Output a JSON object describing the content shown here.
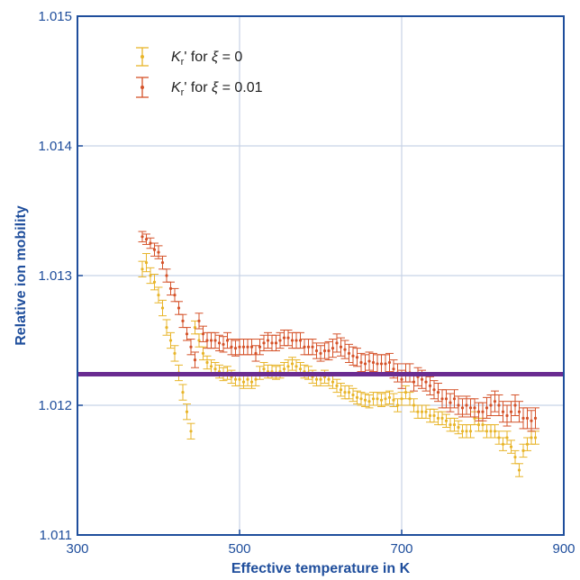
{
  "chart_data": {
    "type": "scatter",
    "title": "",
    "xlabel": "Effective temperature in K",
    "ylabel": "Relative ion mobility",
    "xlim": [
      300,
      900
    ],
    "ylim": [
      1.011,
      1.015
    ],
    "xticks": [
      300,
      500,
      700,
      900
    ],
    "yticks": [
      1.011,
      1.012,
      1.013,
      1.014,
      1.015
    ],
    "xtick_labels": [
      "300",
      "500",
      "700",
      "900"
    ],
    "ytick_labels": [
      "1.011",
      "1.012",
      "1.013",
      "1.014",
      "1.015"
    ],
    "grid": true,
    "legend_position": "top-left",
    "reference_line": {
      "y": 1.01224,
      "color": "#6a2c91"
    },
    "series": [
      {
        "legend_prefix": "K",
        "legend_subscript": "r",
        "legend_suffix": "' for ",
        "legend_symbol": "ξ",
        "legend_value": " = 0",
        "color": "#e8b52a",
        "points": [
          [
            380,
            1.01305,
            6e-05
          ],
          [
            385,
            1.0131,
            7e-05
          ],
          [
            390,
            1.013,
            6e-05
          ],
          [
            395,
            1.01295,
            6e-05
          ],
          [
            400,
            1.01285,
            6e-05
          ],
          [
            405,
            1.01275,
            6e-05
          ],
          [
            410,
            1.0126,
            6e-05
          ],
          [
            415,
            1.0125,
            6e-05
          ],
          [
            420,
            1.0124,
            6e-05
          ],
          [
            425,
            1.01225,
            6e-05
          ],
          [
            430,
            1.0121,
            6e-05
          ],
          [
            435,
            1.01195,
            6e-05
          ],
          [
            440,
            1.0118,
            6e-05
          ],
          [
            445,
            1.0126,
            5e-05
          ],
          [
            450,
            1.0125,
            5e-05
          ],
          [
            455,
            1.0124,
            5e-05
          ],
          [
            460,
            1.01233,
            5e-05
          ],
          [
            465,
            1.0123,
            5e-05
          ],
          [
            470,
            1.01228,
            5e-05
          ],
          [
            475,
            1.01226,
            5e-05
          ],
          [
            480,
            1.01224,
            5e-05
          ],
          [
            485,
            1.01225,
            5e-05
          ],
          [
            490,
            1.01222,
            5e-05
          ],
          [
            495,
            1.0122,
            5e-05
          ],
          [
            500,
            1.0122,
            5e-05
          ],
          [
            505,
            1.01218,
            5e-05
          ],
          [
            510,
            1.0122,
            5e-05
          ],
          [
            515,
            1.01218,
            5e-05
          ],
          [
            520,
            1.0122,
            5e-05
          ],
          [
            525,
            1.01225,
            5e-05
          ],
          [
            530,
            1.01228,
            5e-05
          ],
          [
            535,
            1.01226,
            5e-05
          ],
          [
            540,
            1.01226,
            5e-05
          ],
          [
            545,
            1.01225,
            5e-05
          ],
          [
            550,
            1.01226,
            5e-05
          ],
          [
            555,
            1.01228,
            5e-05
          ],
          [
            560,
            1.0123,
            5e-05
          ],
          [
            565,
            1.01232,
            5e-05
          ],
          [
            570,
            1.0123,
            5e-05
          ],
          [
            575,
            1.01228,
            5e-05
          ],
          [
            580,
            1.01226,
            5e-05
          ],
          [
            585,
            1.01225,
            5e-05
          ],
          [
            590,
            1.01222,
            5e-05
          ],
          [
            595,
            1.0122,
            5e-05
          ],
          [
            600,
            1.0122,
            5e-05
          ],
          [
            605,
            1.01222,
            5e-05
          ],
          [
            610,
            1.0122,
            5e-05
          ],
          [
            615,
            1.01218,
            5e-05
          ],
          [
            620,
            1.01215,
            5e-05
          ],
          [
            625,
            1.01212,
            5e-05
          ],
          [
            630,
            1.0121,
            5e-05
          ],
          [
            635,
            1.0121,
            5e-05
          ],
          [
            640,
            1.01208,
            5e-05
          ],
          [
            645,
            1.01206,
            5e-05
          ],
          [
            650,
            1.01205,
            5e-05
          ],
          [
            655,
            1.01204,
            5e-05
          ],
          [
            660,
            1.01203,
            5e-05
          ],
          [
            665,
            1.01205,
            5e-05
          ],
          [
            670,
            1.01205,
            5e-05
          ],
          [
            675,
            1.01204,
            5e-05
          ],
          [
            680,
            1.01205,
            5e-05
          ],
          [
            685,
            1.01206,
            5e-05
          ],
          [
            690,
            1.01204,
            5e-05
          ],
          [
            695,
            1.012,
            5e-05
          ],
          [
            700,
            1.01205,
            5e-05
          ],
          [
            705,
            1.0121,
            5e-05
          ],
          [
            710,
            1.01205,
            5e-05
          ],
          [
            715,
            1.012,
            5e-05
          ],
          [
            720,
            1.01195,
            5e-05
          ],
          [
            725,
            1.01195,
            5e-05
          ],
          [
            730,
            1.01195,
            5e-05
          ],
          [
            735,
            1.01192,
            5e-05
          ],
          [
            740,
            1.01192,
            5e-05
          ],
          [
            745,
            1.0119,
            5e-05
          ],
          [
            750,
            1.0119,
            5e-05
          ],
          [
            755,
            1.01188,
            5e-05
          ],
          [
            760,
            1.01185,
            5e-05
          ],
          [
            765,
            1.01185,
            5e-05
          ],
          [
            770,
            1.01183,
            5e-05
          ],
          [
            775,
            1.0118,
            5e-05
          ],
          [
            780,
            1.0118,
            5e-05
          ],
          [
            785,
            1.0118,
            5e-05
          ],
          [
            790,
            1.0119,
            5e-05
          ],
          [
            795,
            1.01185,
            5e-05
          ],
          [
            800,
            1.01185,
            5e-05
          ],
          [
            805,
            1.0118,
            5e-05
          ],
          [
            810,
            1.0118,
            5e-05
          ],
          [
            815,
            1.0118,
            5e-05
          ],
          [
            820,
            1.01175,
            5e-05
          ],
          [
            825,
            1.0117,
            5e-05
          ],
          [
            830,
            1.01175,
            5e-05
          ],
          [
            835,
            1.01168,
            5e-05
          ],
          [
            840,
            1.0116,
            5e-05
          ],
          [
            845,
            1.0115,
            5e-05
          ],
          [
            850,
            1.01165,
            5e-05
          ],
          [
            855,
            1.0117,
            5e-05
          ],
          [
            860,
            1.01175,
            5e-05
          ],
          [
            865,
            1.01175,
            5e-05
          ]
        ]
      },
      {
        "legend_prefix": "K",
        "legend_subscript": "r",
        "legend_suffix": "' for ",
        "legend_symbol": "ξ",
        "legend_value": " = 0.01",
        "color": "#d5532a",
        "points": [
          [
            380,
            1.0133,
            4e-05
          ],
          [
            385,
            1.01328,
            4e-05
          ],
          [
            390,
            1.01325,
            4e-05
          ],
          [
            395,
            1.0132,
            5e-05
          ],
          [
            400,
            1.01318,
            5e-05
          ],
          [
            405,
            1.0131,
            5e-05
          ],
          [
            410,
            1.013,
            5e-05
          ],
          [
            415,
            1.0129,
            5e-05
          ],
          [
            420,
            1.01285,
            5e-05
          ],
          [
            425,
            1.01275,
            5e-05
          ],
          [
            430,
            1.01265,
            5e-05
          ],
          [
            435,
            1.01255,
            5e-05
          ],
          [
            440,
            1.01245,
            6e-05
          ],
          [
            445,
            1.01235,
            6e-05
          ],
          [
            450,
            1.01265,
            6e-05
          ],
          [
            455,
            1.01255,
            6e-05
          ],
          [
            460,
            1.0125,
            6e-05
          ],
          [
            465,
            1.0125,
            6e-05
          ],
          [
            470,
            1.0125,
            6e-05
          ],
          [
            475,
            1.01248,
            6e-05
          ],
          [
            480,
            1.01247,
            6e-05
          ],
          [
            485,
            1.0125,
            6e-05
          ],
          [
            490,
            1.01245,
            6e-05
          ],
          [
            495,
            1.01244,
            6e-05
          ],
          [
            500,
            1.01245,
            6e-05
          ],
          [
            505,
            1.01245,
            6e-05
          ],
          [
            510,
            1.01245,
            6e-05
          ],
          [
            515,
            1.01245,
            6e-05
          ],
          [
            520,
            1.0124,
            6e-05
          ],
          [
            525,
            1.01245,
            6e-05
          ],
          [
            530,
            1.01248,
            6e-05
          ],
          [
            535,
            1.0125,
            6e-05
          ],
          [
            540,
            1.01248,
            6e-05
          ],
          [
            545,
            1.01248,
            6e-05
          ],
          [
            550,
            1.0125,
            6e-05
          ],
          [
            555,
            1.01252,
            6e-05
          ],
          [
            560,
            1.01252,
            6e-05
          ],
          [
            565,
            1.0125,
            6e-05
          ],
          [
            570,
            1.0125,
            6e-05
          ],
          [
            575,
            1.0125,
            6e-05
          ],
          [
            580,
            1.01245,
            6e-05
          ],
          [
            585,
            1.01245,
            6e-05
          ],
          [
            590,
            1.01245,
            6e-05
          ],
          [
            595,
            1.01242,
            6e-05
          ],
          [
            600,
            1.0124,
            6e-05
          ],
          [
            605,
            1.01242,
            6e-05
          ],
          [
            610,
            1.01242,
            7e-05
          ],
          [
            615,
            1.01244,
            7e-05
          ],
          [
            620,
            1.01248,
            7e-05
          ],
          [
            625,
            1.01245,
            7e-05
          ],
          [
            630,
            1.01243,
            7e-05
          ],
          [
            635,
            1.0124,
            7e-05
          ],
          [
            640,
            1.01238,
            7e-05
          ],
          [
            645,
            1.01237,
            7e-05
          ],
          [
            650,
            1.01233,
            7e-05
          ],
          [
            655,
            1.01232,
            7e-05
          ],
          [
            660,
            1.01234,
            7e-05
          ],
          [
            665,
            1.01233,
            7e-05
          ],
          [
            670,
            1.01232,
            7e-05
          ],
          [
            675,
            1.01232,
            7e-05
          ],
          [
            680,
            1.01232,
            7e-05
          ],
          [
            685,
            1.01233,
            7e-05
          ],
          [
            690,
            1.01228,
            7e-05
          ],
          [
            695,
            1.01225,
            7e-05
          ],
          [
            700,
            1.0122,
            7e-05
          ],
          [
            705,
            1.01225,
            7e-05
          ],
          [
            710,
            1.01225,
            7e-05
          ],
          [
            715,
            1.01218,
            7e-05
          ],
          [
            720,
            1.01222,
            7e-05
          ],
          [
            725,
            1.0122,
            7e-05
          ],
          [
            730,
            1.01218,
            7e-05
          ],
          [
            735,
            1.01215,
            7e-05
          ],
          [
            740,
            1.01212,
            7e-05
          ],
          [
            745,
            1.0121,
            7e-05
          ],
          [
            750,
            1.01205,
            7e-05
          ],
          [
            755,
            1.01205,
            7e-05
          ],
          [
            760,
            1.01202,
            7e-05
          ],
          [
            765,
            1.01205,
            7e-05
          ],
          [
            770,
            1.012,
            7e-05
          ],
          [
            775,
            1.01198,
            7e-05
          ],
          [
            780,
            1.012,
            7e-05
          ],
          [
            785,
            1.01198,
            7e-05
          ],
          [
            790,
            1.01198,
            7e-05
          ],
          [
            795,
            1.01195,
            7e-05
          ],
          [
            800,
            1.01195,
            7e-05
          ],
          [
            805,
            1.01198,
            8e-05
          ],
          [
            810,
            1.012,
            8e-05
          ],
          [
            815,
            1.01203,
            8e-05
          ],
          [
            820,
            1.012,
            8e-05
          ],
          [
            825,
            1.01195,
            8e-05
          ],
          [
            830,
            1.01192,
            8e-05
          ],
          [
            835,
            1.01195,
            8e-05
          ],
          [
            840,
            1.012,
            8e-05
          ],
          [
            845,
            1.01195,
            8e-05
          ],
          [
            850,
            1.0119,
            8e-05
          ],
          [
            855,
            1.0119,
            8e-05
          ],
          [
            860,
            1.01188,
            8e-05
          ],
          [
            865,
            1.0119,
            8e-05
          ]
        ]
      }
    ]
  }
}
